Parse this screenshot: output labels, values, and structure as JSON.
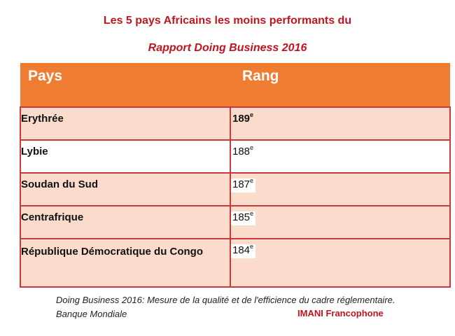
{
  "title": {
    "line1": "Les 5 pays Africains les moins performants du",
    "line2": "Rapport Doing Business 2016"
  },
  "table": {
    "headers": [
      "Pays",
      "Rang"
    ],
    "rows": [
      {
        "country": "Erythrée",
        "rank": "189",
        "suffix": "e"
      },
      {
        "country": "Lybie",
        "rank": "188",
        "suffix": "e"
      },
      {
        "country": "Soudan du Sud",
        "rank": "187",
        "suffix": "e"
      },
      {
        "country": "Centrafrique",
        "rank": "185",
        "suffix": "e"
      },
      {
        "country": "République Démocratique du Congo",
        "rank": "184",
        "suffix": "e"
      }
    ]
  },
  "caption": "Doing Business 2016: Mesure de la qualité et de l'efficience du cadre réglementaire. Banque Mondiale",
  "source": "IMANI Francophone",
  "colors": {
    "title": "#c0151e",
    "header_bg": "#ee7d31",
    "row_tint": "#fbdccc",
    "border": "#c83a3a"
  }
}
